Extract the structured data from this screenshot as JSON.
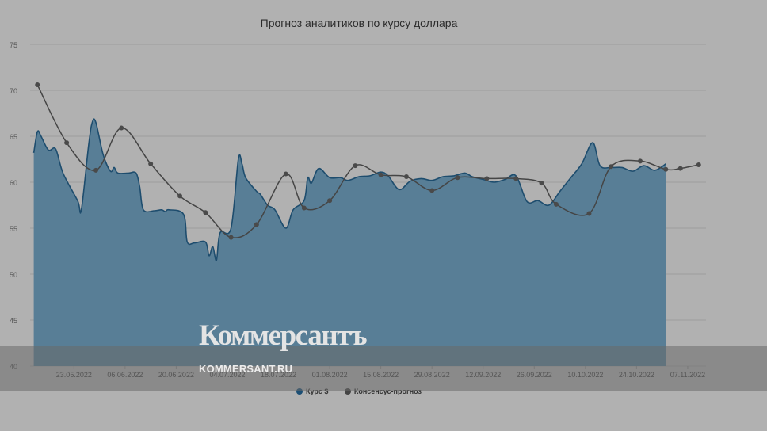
{
  "chart_data": {
    "type": "area",
    "title": "Прогноз аналитиков по курсу доллара",
    "ylim": [
      40,
      75
    ],
    "yticks": [
      40,
      45,
      50,
      55,
      60,
      65,
      70,
      75
    ],
    "x_tick_labels": [
      "23.05.2022",
      "06.06.2022",
      "20.06.2022",
      "04.07.2022",
      "18.07.2022",
      "01.08.2022",
      "15.08.2022",
      "29.08.2022",
      "12.09.2022",
      "26.09.2022",
      "10.10.2022",
      "24.10.2022",
      "07.11.2022"
    ],
    "grid": true,
    "legend_position": "bottom",
    "series": [
      {
        "name": "Курс $",
        "type": "area",
        "color": "#2c5b7c",
        "points": [
          [
            "2022-05-12",
            63.2
          ],
          [
            "2022-05-13",
            65.5
          ],
          [
            "2022-05-14",
            65.0
          ],
          [
            "2022-05-16",
            63.5
          ],
          [
            "2022-05-18",
            63.6
          ],
          [
            "2022-05-20",
            61.0
          ],
          [
            "2022-05-24",
            58.0
          ],
          [
            "2022-05-25",
            57.0
          ],
          [
            "2022-05-27",
            64.0
          ],
          [
            "2022-05-28",
            66.5
          ],
          [
            "2022-05-29",
            66.5
          ],
          [
            "2022-05-31",
            63.0
          ],
          [
            "2022-06-02",
            61.2
          ],
          [
            "2022-06-03",
            61.6
          ],
          [
            "2022-06-04",
            61.0
          ],
          [
            "2022-06-07",
            61.0
          ],
          [
            "2022-06-09",
            61.0
          ],
          [
            "2022-06-10",
            59.5
          ],
          [
            "2022-06-11",
            57.0
          ],
          [
            "2022-06-14",
            56.9
          ],
          [
            "2022-06-16",
            57.0
          ],
          [
            "2022-06-17",
            56.8
          ],
          [
            "2022-06-18",
            57.0
          ],
          [
            "2022-06-22",
            56.5
          ],
          [
            "2022-06-23",
            53.5
          ],
          [
            "2022-06-25",
            53.4
          ],
          [
            "2022-06-28",
            53.5
          ],
          [
            "2022-06-29",
            52.0
          ],
          [
            "2022-06-30",
            53.0
          ],
          [
            "2022-07-01",
            51.5
          ],
          [
            "2022-07-02",
            54.5
          ],
          [
            "2022-07-05",
            55.0
          ],
          [
            "2022-07-07",
            62.5
          ],
          [
            "2022-07-08",
            62.0
          ],
          [
            "2022-07-09",
            60.5
          ],
          [
            "2022-07-12",
            59.0
          ],
          [
            "2022-07-13",
            58.7
          ],
          [
            "2022-07-15",
            57.5
          ],
          [
            "2022-07-17",
            57.0
          ],
          [
            "2022-07-20",
            55.0
          ],
          [
            "2022-07-22",
            57.0
          ],
          [
            "2022-07-25",
            58.0
          ],
          [
            "2022-07-26",
            60.5
          ],
          [
            "2022-07-27",
            59.9
          ],
          [
            "2022-07-29",
            61.5
          ],
          [
            "2022-08-01",
            60.5
          ],
          [
            "2022-08-04",
            60.5
          ],
          [
            "2022-08-06",
            60.2
          ],
          [
            "2022-08-09",
            60.6
          ],
          [
            "2022-08-12",
            60.7
          ],
          [
            "2022-08-15",
            61.1
          ],
          [
            "2022-08-17",
            60.7
          ],
          [
            "2022-08-20",
            59.2
          ],
          [
            "2022-08-23",
            60.1
          ],
          [
            "2022-08-26",
            60.4
          ],
          [
            "2022-08-29",
            60.2
          ],
          [
            "2022-09-01",
            60.6
          ],
          [
            "2022-09-04",
            60.7
          ],
          [
            "2022-09-07",
            61.0
          ],
          [
            "2022-09-09",
            60.6
          ],
          [
            "2022-09-12",
            60.3
          ],
          [
            "2022-09-15",
            60.0
          ],
          [
            "2022-09-18",
            60.3
          ],
          [
            "2022-09-21",
            60.7
          ],
          [
            "2022-09-24",
            57.9
          ],
          [
            "2022-09-27",
            58.0
          ],
          [
            "2022-09-30",
            57.5
          ],
          [
            "2022-10-03",
            59.0
          ],
          [
            "2022-10-06",
            60.5
          ],
          [
            "2022-10-09",
            62.0
          ],
          [
            "2022-10-12",
            64.3
          ],
          [
            "2022-10-14",
            61.8
          ],
          [
            "2022-10-17",
            61.6
          ],
          [
            "2022-10-20",
            61.6
          ],
          [
            "2022-10-23",
            61.2
          ],
          [
            "2022-10-26",
            61.8
          ],
          [
            "2022-10-29",
            61.3
          ],
          [
            "2022-11-01",
            62.0
          ]
        ]
      },
      {
        "name": "Консенсус-прогноз",
        "type": "line",
        "color": "#4a4a4a",
        "points": [
          [
            "2022-05-13",
            70.6
          ],
          [
            "2022-05-21",
            64.3
          ],
          [
            "2022-05-29",
            61.3
          ],
          [
            "2022-06-05",
            65.9
          ],
          [
            "2022-06-13",
            62.0
          ],
          [
            "2022-06-21",
            58.5
          ],
          [
            "2022-06-28",
            56.7
          ],
          [
            "2022-07-05",
            54.0
          ],
          [
            "2022-07-12",
            55.4
          ],
          [
            "2022-07-20",
            60.9
          ],
          [
            "2022-07-25",
            57.2
          ],
          [
            "2022-08-01",
            58.0
          ],
          [
            "2022-08-08",
            61.8
          ],
          [
            "2022-08-15",
            60.8
          ],
          [
            "2022-08-22",
            60.6
          ],
          [
            "2022-08-29",
            59.1
          ],
          [
            "2022-09-05",
            60.5
          ],
          [
            "2022-09-13",
            60.4
          ],
          [
            "2022-09-21",
            60.4
          ],
          [
            "2022-09-28",
            59.9
          ],
          [
            "2022-10-02",
            57.6
          ],
          [
            "2022-10-11",
            56.6
          ],
          [
            "2022-10-17",
            61.7
          ],
          [
            "2022-10-25",
            62.3
          ],
          [
            "2022-11-01",
            61.4
          ],
          [
            "2022-11-05",
            61.5
          ],
          [
            "2022-11-10",
            61.9
          ]
        ]
      }
    ]
  },
  "watermark": {
    "logo": "Коммерсантъ",
    "url": "KOMMERSANT.RU"
  }
}
